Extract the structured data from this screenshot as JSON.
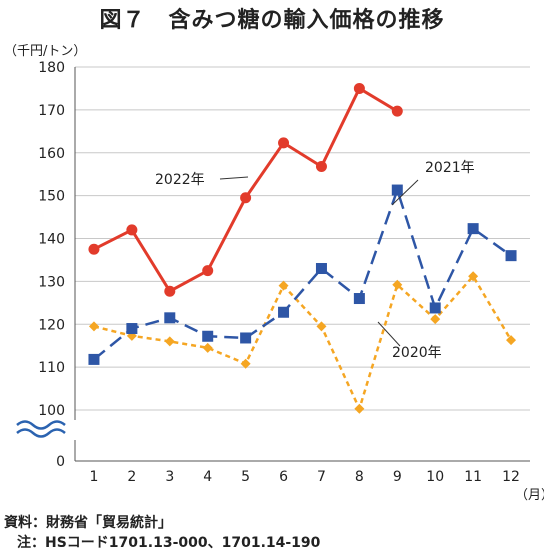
{
  "chart_data": {
    "type": "line",
    "title": "図７　含みつ糖の輸入価格の推移",
    "ylabel": "（千円/トン）",
    "xlabel": "（月）",
    "categories": [
      "1",
      "2",
      "3",
      "4",
      "5",
      "6",
      "7",
      "8",
      "9",
      "10",
      "11",
      "12"
    ],
    "yticks": [
      "0",
      "100",
      "110",
      "120",
      "130",
      "140",
      "150",
      "160",
      "170",
      "180"
    ],
    "ylim": [
      100,
      180
    ],
    "axis_break": true,
    "grid": true,
    "series": [
      {
        "name": "2022年",
        "color": "#e23b2b",
        "marker": "circle",
        "dash": "solid",
        "values": [
          137.5,
          142.0,
          127.7,
          132.5,
          149.5,
          162.3,
          156.8,
          175.0,
          169.7,
          null,
          null,
          null
        ]
      },
      {
        "name": "2021年",
        "color": "#2e56a6",
        "marker": "square",
        "dash": "dashed",
        "values": [
          111.8,
          119.0,
          121.5,
          117.2,
          116.8,
          122.8,
          133.0,
          126.0,
          151.3,
          123.8,
          142.3,
          136.0
        ]
      },
      {
        "name": "2020年",
        "color": "#f5a623",
        "marker": "diamond",
        "dash": "dotted",
        "values": [
          119.5,
          117.3,
          116.0,
          114.5,
          110.8,
          129.0,
          119.5,
          100.3,
          129.2,
          121.2,
          131.2,
          116.3
        ]
      }
    ]
  },
  "footer": {
    "source": "資料：財務省「貿易統計」",
    "note": "注：HSコード1701.13-000、1701.14-190"
  }
}
